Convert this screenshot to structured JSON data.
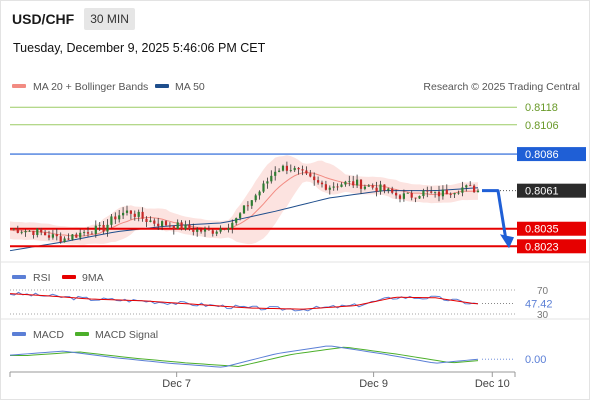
{
  "header": {
    "symbol": "USD/CHF",
    "timeframe": "30 MIN"
  },
  "datetime": "Tuesday, December 9, 2025 5:46:06 PM CET",
  "attribution": "Research © 2025 Trading Central",
  "colors": {
    "ma20": "#f28b82",
    "ma50": "#1f4e8c",
    "bollinger_fill": "#fbd9d5",
    "resistance": "#9ccc65",
    "pivot": "#1f5fd6",
    "support": "#e60000",
    "up": "#2e7d32",
    "down": "#c62828",
    "arrow": "#1f5fd6",
    "rsi": "#5b7fd6",
    "rsi_ma": "#e60000",
    "macd": "#5b7fd6",
    "macd_signal": "#4caf2a"
  },
  "chart_data": [
    {
      "type": "candlestick",
      "title": "USD/CHF",
      "legend": [
        "MA 20 + Bollinger Bands",
        "MA 50"
      ],
      "x_ticks": [
        "Dec 7",
        "Dec 9",
        "Dec 10"
      ],
      "ylim": [
        0.8015,
        0.8125
      ],
      "current_price": 0.8061,
      "levels": [
        {
          "label": "0.8118",
          "value": 0.8118,
          "kind": "resistance"
        },
        {
          "label": "0.8106",
          "value": 0.8106,
          "kind": "resistance"
        },
        {
          "label": "0.8086",
          "value": 0.8086,
          "kind": "pivot"
        },
        {
          "label": "0.8035",
          "value": 0.8035,
          "kind": "support"
        },
        {
          "label": "0.8023",
          "value": 0.8023,
          "kind": "support"
        }
      ],
      "price_path": [
        [
          0,
          0.8035
        ],
        [
          10,
          0.8034
        ],
        [
          20,
          0.8033
        ],
        [
          30,
          0.803
        ],
        [
          40,
          0.8028
        ],
        [
          50,
          0.8031
        ],
        [
          60,
          0.8034
        ],
        [
          70,
          0.8035
        ],
        [
          80,
          0.8044
        ],
        [
          90,
          0.8047
        ],
        [
          100,
          0.8042
        ],
        [
          110,
          0.8039
        ],
        [
          120,
          0.8038
        ],
        [
          130,
          0.8036
        ],
        [
          140,
          0.8034
        ],
        [
          150,
          0.8033
        ],
        [
          160,
          0.8036
        ],
        [
          170,
          0.8041
        ],
        [
          180,
          0.8053
        ],
        [
          190,
          0.8063
        ],
        [
          200,
          0.8076
        ],
        [
          210,
          0.8077
        ],
        [
          220,
          0.8072
        ],
        [
          230,
          0.8066
        ],
        [
          240,
          0.8064
        ],
        [
          250,
          0.8066
        ],
        [
          260,
          0.8066
        ],
        [
          270,
          0.8064
        ],
        [
          280,
          0.8062
        ],
        [
          290,
          0.8058
        ],
        [
          300,
          0.8057
        ],
        [
          310,
          0.806
        ],
        [
          320,
          0.8058
        ],
        [
          330,
          0.8061
        ],
        [
          340,
          0.8063
        ],
        [
          350,
          0.8062
        ],
        [
          352,
          0.8061
        ]
      ],
      "ma50_path": [
        [
          0,
          0.802
        ],
        [
          40,
          0.8026
        ],
        [
          80,
          0.8033
        ],
        [
          120,
          0.8037
        ],
        [
          160,
          0.8039
        ],
        [
          200,
          0.8047
        ],
        [
          240,
          0.8056
        ],
        [
          280,
          0.8061
        ],
        [
          320,
          0.8061
        ],
        [
          352,
          0.8063
        ]
      ],
      "forecast": {
        "from": 0.8061,
        "to": 0.8023
      }
    },
    {
      "type": "line",
      "title": "RSI",
      "series": [
        {
          "name": "RSI"
        },
        {
          "name": "9MA"
        }
      ],
      "levels": [
        {
          "label": "70",
          "value": 70
        },
        {
          "label": "30",
          "value": 30
        }
      ],
      "current_value": 47.42,
      "current_label": "47.42",
      "rsi": [
        [
          0,
          64
        ],
        [
          30,
          60
        ],
        [
          60,
          55
        ],
        [
          100,
          52
        ],
        [
          140,
          46
        ],
        [
          180,
          40
        ],
        [
          220,
          38
        ],
        [
          260,
          44
        ],
        [
          290,
          58
        ],
        [
          320,
          57
        ],
        [
          350,
          47
        ]
      ]
    },
    {
      "type": "line",
      "title": "MACD",
      "series": [
        {
          "name": "MACD"
        },
        {
          "name": "MACD Signal"
        }
      ],
      "zero_label": "0.00",
      "macd": [
        [
          0,
          0.0003
        ],
        [
          40,
          0.0006
        ],
        [
          80,
          0.0001
        ],
        [
          120,
          -0.0003
        ],
        [
          160,
          -0.0006
        ],
        [
          200,
          0.0004
        ],
        [
          240,
          0.001
        ],
        [
          280,
          0.0004
        ],
        [
          320,
          -0.0003
        ],
        [
          352,
          0.0
        ]
      ]
    }
  ]
}
